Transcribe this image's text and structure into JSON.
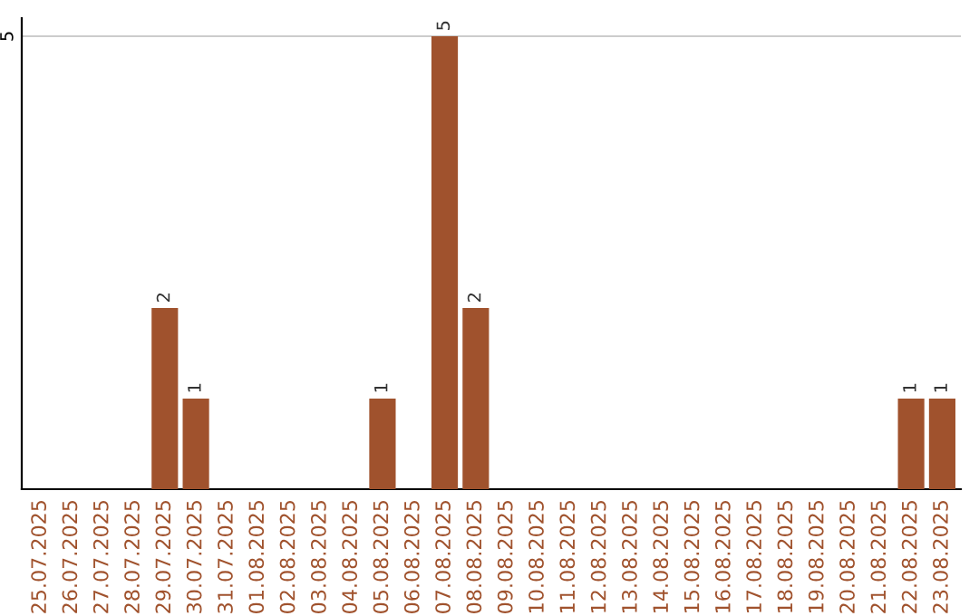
{
  "chart_data": {
    "type": "bar",
    "categories": [
      "25.07.2025",
      "26.07.2025",
      "27.07.2025",
      "28.07.2025",
      "29.07.2025",
      "30.07.2025",
      "31.07.2025",
      "01.08.2025",
      "02.08.2025",
      "03.08.2025",
      "04.08.2025",
      "05.08.2025",
      "06.08.2025",
      "07.08.2025",
      "08.08.2025",
      "09.08.2025",
      "10.08.2025",
      "11.08.2025",
      "12.08.2025",
      "13.08.2025",
      "14.08.2025",
      "15.08.2025",
      "16.08.2025",
      "17.08.2025",
      "18.08.2025",
      "19.08.2025",
      "20.08.2025",
      "21.08.2025",
      "22.08.2025",
      "23.08.2025"
    ],
    "values": [
      0,
      0,
      0,
      0,
      2,
      1,
      0,
      0,
      0,
      0,
      0,
      1,
      0,
      5,
      2,
      0,
      0,
      0,
      0,
      0,
      0,
      0,
      0,
      0,
      0,
      0,
      0,
      0,
      1,
      1
    ],
    "value_labels": [
      null,
      null,
      null,
      null,
      "2",
      "1",
      null,
      null,
      null,
      null,
      null,
      "1",
      null,
      "5",
      "2",
      null,
      null,
      null,
      null,
      null,
      null,
      null,
      null,
      null,
      null,
      null,
      null,
      null,
      "1",
      "1"
    ],
    "color": "#a0522d",
    "ylim": [
      0,
      5.2
    ],
    "yticks": [
      5
    ],
    "grid": "y"
  }
}
